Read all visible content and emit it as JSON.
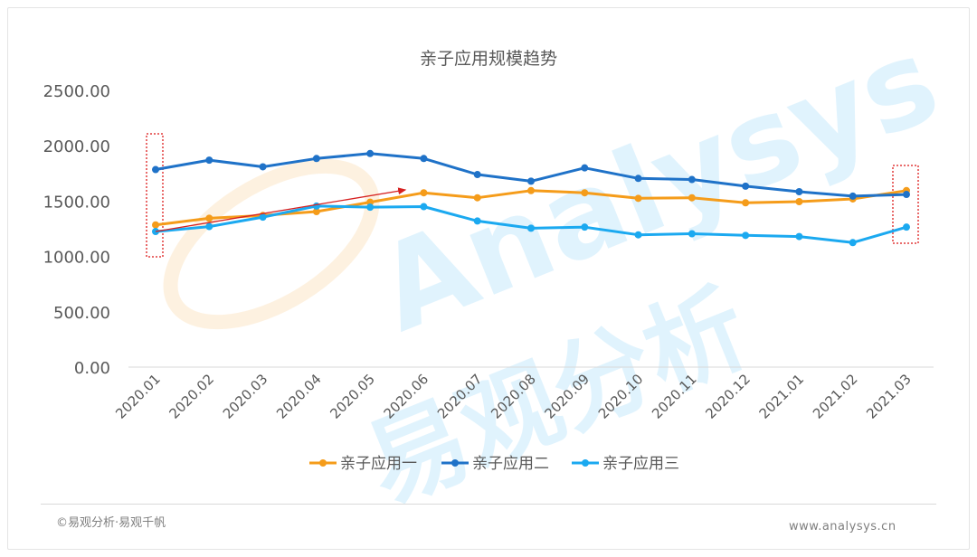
{
  "chart_data": {
    "type": "line",
    "title": "亲子应用规模趋势",
    "xlabel": "",
    "ylabel": "",
    "categories": [
      "2020.01",
      "2020.02",
      "2020.03",
      "2020.04",
      "2020.05",
      "2020.06",
      "2020.07",
      "2020.08",
      "2020.09",
      "2020.10",
      "2020.11",
      "2020.12",
      "2021.01",
      "2021.02",
      "2021.03"
    ],
    "y_ticks": [
      "0.00",
      "500.00",
      "1000.00",
      "1500.00",
      "2000.00",
      "2500.00"
    ],
    "ylim": [
      0,
      2500
    ],
    "grid": false,
    "legend_position": "bottom",
    "series": [
      {
        "name": "亲子应用一",
        "color": "#f59c1a",
        "values": [
          1285,
          1345,
          1370,
          1405,
          1490,
          1575,
          1530,
          1595,
          1575,
          1525,
          1530,
          1485,
          1495,
          1520,
          1595
        ]
      },
      {
        "name": "亲子应用二",
        "color": "#1f72c8",
        "values": [
          1785,
          1870,
          1810,
          1885,
          1930,
          1885,
          1740,
          1680,
          1800,
          1705,
          1695,
          1635,
          1585,
          1545,
          1560
        ]
      },
      {
        "name": "亲子应用三",
        "color": "#1ba9f0",
        "values": [
          1225,
          1270,
          1355,
          1455,
          1445,
          1450,
          1320,
          1255,
          1265,
          1195,
          1205,
          1190,
          1180,
          1125,
          1265
        ]
      }
    ]
  },
  "watermark": {
    "brand": "Analysys",
    "cn": "易观分析"
  },
  "footer": {
    "copyright": "©易观分析·易观千帆",
    "site": "www.analysys.cn"
  }
}
